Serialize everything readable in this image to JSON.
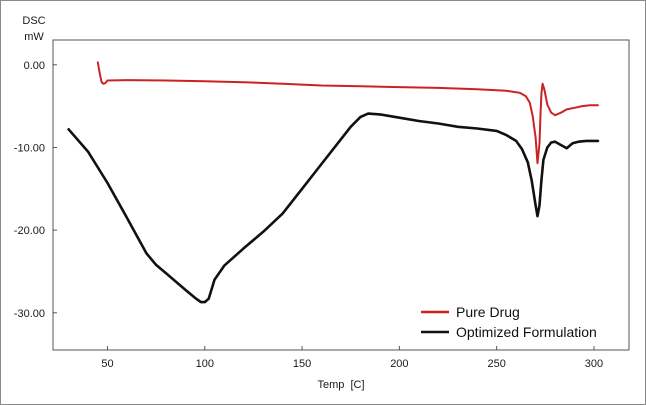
{
  "chart_data": {
    "type": "line",
    "title": "",
    "ylabel_line1": "DSC",
    "ylabel_line2": "mW",
    "xlabel": "Temp  [C]",
    "xlim": [
      22,
      318
    ],
    "ylim": [
      -34.5,
      3
    ],
    "x_ticks": [
      50,
      100,
      150,
      200,
      250,
      300
    ],
    "x_tick_labels": [
      "50",
      "100",
      "150",
      "200",
      "250",
      "300"
    ],
    "y_ticks": [
      0,
      -10,
      -20,
      -30
    ],
    "y_tick_labels": [
      "0.00",
      "-10.00",
      "-20.00",
      "-30.00"
    ],
    "grid": false,
    "legend_position": "bottom-right",
    "series": [
      {
        "name": "Pure Drug",
        "color": "#cc2222",
        "points": [
          [
            45,
            0.3
          ],
          [
            46,
            -1
          ],
          [
            47,
            -2.1
          ],
          [
            48,
            -2.3
          ],
          [
            49,
            -2.2
          ],
          [
            50,
            -1.9
          ],
          [
            60,
            -1.85
          ],
          [
            80,
            -1.9
          ],
          [
            100,
            -2.0
          ],
          [
            120,
            -2.1
          ],
          [
            140,
            -2.3
          ],
          [
            160,
            -2.5
          ],
          [
            180,
            -2.6
          ],
          [
            200,
            -2.7
          ],
          [
            220,
            -2.8
          ],
          [
            240,
            -2.95
          ],
          [
            255,
            -3.15
          ],
          [
            262,
            -3.4
          ],
          [
            265,
            -3.8
          ],
          [
            267,
            -4.6
          ],
          [
            268.5,
            -6.2
          ],
          [
            270,
            -8.8
          ],
          [
            271,
            -11.9
          ],
          [
            272,
            -9.5
          ],
          [
            272.5,
            -6
          ],
          [
            273,
            -3.5
          ],
          [
            273.6,
            -2.3
          ],
          [
            274.5,
            -3
          ],
          [
            276,
            -4.8
          ],
          [
            278,
            -5.8
          ],
          [
            280,
            -6.1
          ],
          [
            283,
            -5.8
          ],
          [
            286,
            -5.4
          ],
          [
            290,
            -5.2
          ],
          [
            294,
            -5.0
          ],
          [
            298,
            -4.9
          ],
          [
            302,
            -4.9
          ]
        ]
      },
      {
        "name": "Optimized Formulation",
        "color": "#111111",
        "points": [
          [
            30,
            -7.8
          ],
          [
            40,
            -10.5
          ],
          [
            50,
            -14.3
          ],
          [
            60,
            -18.5
          ],
          [
            70,
            -22.8
          ],
          [
            75,
            -24.2
          ],
          [
            80,
            -25.2
          ],
          [
            90,
            -27.2
          ],
          [
            95,
            -28.2
          ],
          [
            98,
            -28.7
          ],
          [
            100,
            -28.7
          ],
          [
            102,
            -28.3
          ],
          [
            105,
            -26
          ],
          [
            110,
            -24.3
          ],
          [
            120,
            -22.2
          ],
          [
            130,
            -20.2
          ],
          [
            140,
            -18
          ],
          [
            150,
            -15
          ],
          [
            160,
            -12
          ],
          [
            170,
            -9
          ],
          [
            175,
            -7.5
          ],
          [
            180,
            -6.3
          ],
          [
            184,
            -5.9
          ],
          [
            190,
            -6
          ],
          [
            200,
            -6.4
          ],
          [
            210,
            -6.8
          ],
          [
            220,
            -7.1
          ],
          [
            230,
            -7.5
          ],
          [
            240,
            -7.7
          ],
          [
            250,
            -8.0
          ],
          [
            255,
            -8.5
          ],
          [
            260,
            -9.2
          ],
          [
            263,
            -10.2
          ],
          [
            266,
            -11.8
          ],
          [
            268,
            -14
          ],
          [
            270,
            -17
          ],
          [
            271,
            -18.3
          ],
          [
            272,
            -17
          ],
          [
            273,
            -14
          ],
          [
            274,
            -11.5
          ],
          [
            276,
            -10
          ],
          [
            278,
            -9.4
          ],
          [
            280,
            -9.3
          ],
          [
            283,
            -9.7
          ],
          [
            286,
            -10.1
          ],
          [
            289,
            -9.5
          ],
          [
            292,
            -9.3
          ],
          [
            296,
            -9.2
          ],
          [
            302,
            -9.2
          ]
        ]
      }
    ]
  }
}
